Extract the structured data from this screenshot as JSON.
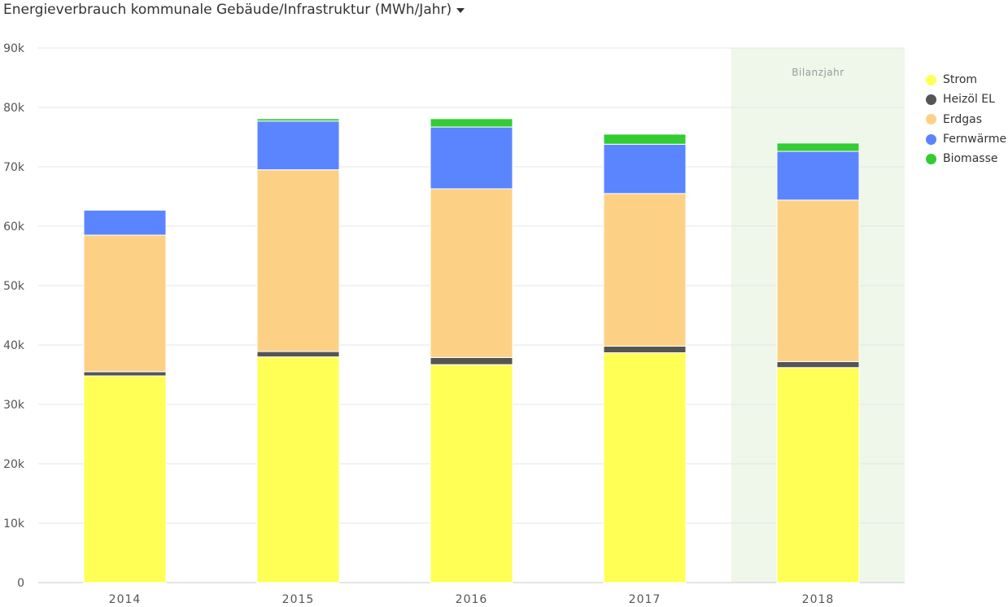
{
  "header": {
    "title": "Energieverbrauch kommunale Gebäude/Infrastruktur (MWh/Jahr)",
    "dropdown_icon": "caret-down-icon"
  },
  "chart_data": {
    "type": "bar",
    "stacked": true,
    "title": "Energieverbrauch kommunale Gebäude/Infrastruktur (MWh/Jahr)",
    "xlabel": "",
    "ylabel": "",
    "categories": [
      "2014",
      "2015",
      "2016",
      "2017",
      "2018"
    ],
    "ylim": [
      0,
      90000
    ],
    "yticks": [
      0,
      10000,
      20000,
      30000,
      40000,
      50000,
      60000,
      70000,
      80000,
      90000
    ],
    "ytick_labels": [
      "0",
      "10k",
      "20k",
      "30k",
      "40k",
      "50k",
      "60k",
      "70k",
      "80k",
      "90k"
    ],
    "grid": true,
    "legend_position": "right",
    "highlight": {
      "category": "2018",
      "label": "Bilanzjahr",
      "color": "#eef7ea"
    },
    "series": [
      {
        "name": "Strom",
        "color": "#ffff55",
        "values": [
          34800,
          38000,
          36700,
          38700,
          36200
        ]
      },
      {
        "name": "Heizöl EL",
        "color": "#555555",
        "values": [
          700,
          900,
          1200,
          1100,
          1000
        ]
      },
      {
        "name": "Erdgas",
        "color": "#fdd185",
        "values": [
          23000,
          30600,
          28400,
          25700,
          27200
        ]
      },
      {
        "name": "Fernwärme",
        "color": "#5b84ff",
        "values": [
          4200,
          8200,
          10400,
          8300,
          8200
        ]
      },
      {
        "name": "Biomasse",
        "color": "#33cc33",
        "values": [
          0,
          400,
          1400,
          1700,
          1400
        ]
      }
    ]
  }
}
